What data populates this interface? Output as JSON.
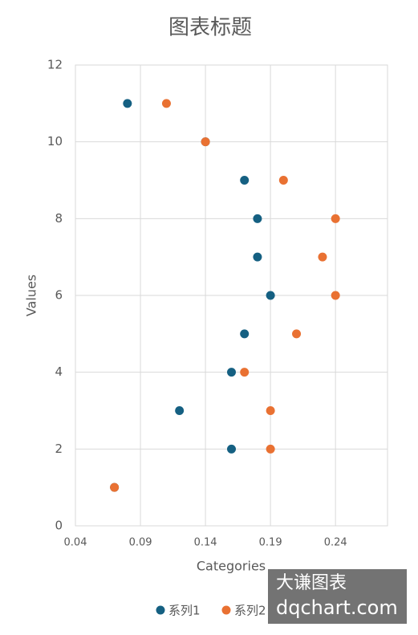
{
  "chart_data": {
    "type": "scatter",
    "title": "图表标题",
    "x_label": "Categories",
    "y_label": "Values",
    "series": [
      {
        "name": "系列1",
        "color": "#156082",
        "x": [
          0.08,
          0.14,
          0.17,
          0.18,
          0.18,
          0.19,
          0.17,
          0.16,
          0.12,
          0.16,
          0.07
        ],
        "values": [
          11,
          10,
          9,
          8,
          7,
          6,
          5,
          4,
          3,
          2,
          1
        ]
      },
      {
        "name": "系列2",
        "color": "#e97132",
        "x": [
          0.11,
          0.14,
          0.2,
          0.24,
          0.23,
          0.24,
          0.21,
          0.17,
          0.19,
          0.19,
          0.07
        ],
        "values": [
          11,
          10,
          9,
          8,
          7,
          6,
          5,
          4,
          3,
          2,
          1
        ]
      }
    ],
    "xlim": [
      0.04,
      0.28
    ],
    "xticks": [
      0.04,
      0.09,
      0.14,
      0.19,
      0.24
    ],
    "ylim": [
      0,
      12
    ],
    "yticks": [
      0,
      2,
      4,
      6,
      8,
      10,
      12
    ],
    "grid": true,
    "legend": "bottom",
    "watermark": [
      "大谦图表",
      "dqchart.com"
    ]
  }
}
